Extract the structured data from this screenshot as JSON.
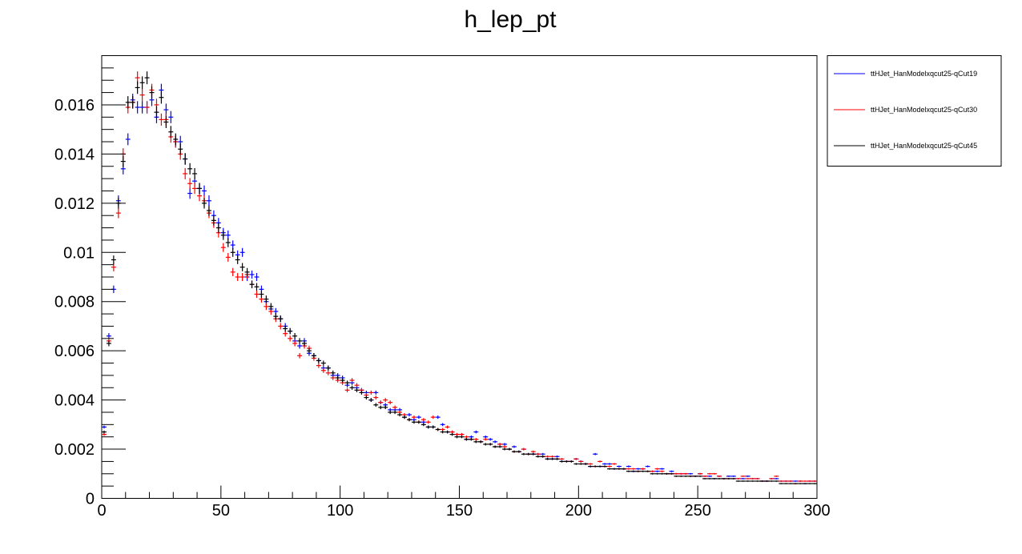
{
  "chart_data": {
    "type": "scatter",
    "title": "h_lep_pt",
    "xlabel": "",
    "ylabel": "",
    "xlim": [
      0,
      300
    ],
    "ylim": [
      0,
      0.018
    ],
    "x_ticks": [
      0,
      50,
      100,
      150,
      200,
      250,
      300
    ],
    "x_tick_labels": [
      "0",
      "50",
      "100",
      "150",
      "200",
      "250",
      "300"
    ],
    "y_ticks": [
      0,
      0.002,
      0.004,
      0.006,
      0.008,
      0.01,
      0.012,
      0.014,
      0.016
    ],
    "y_tick_labels": [
      "0",
      "0.002",
      "0.004",
      "0.006",
      "0.008",
      "0.01",
      "0.012",
      "0.014",
      "0.016"
    ],
    "grid": false,
    "legend_position": "outside-top-right",
    "bin_width": 2,
    "series": [
      {
        "name": "ttHJet_HanModelxqcut25-qCut19",
        "color": "#0000ff",
        "x": [
          1,
          3,
          5,
          7,
          9,
          11,
          13,
          15,
          17,
          19,
          21,
          23,
          25,
          27,
          29,
          31,
          33,
          35,
          37,
          39,
          41,
          43,
          45,
          47,
          49,
          51,
          53,
          55,
          57,
          59,
          61,
          63,
          65,
          67,
          69,
          71,
          73,
          75,
          77,
          79,
          81,
          83,
          85,
          87,
          89,
          91,
          93,
          95,
          97,
          99,
          101,
          103,
          105,
          107,
          109,
          111,
          113,
          115,
          117,
          119,
          121,
          123,
          125,
          127,
          129,
          131,
          133,
          135,
          137,
          139,
          141,
          143,
          145,
          147,
          149,
          151,
          153,
          155,
          157,
          159,
          161,
          163,
          165,
          167,
          169,
          171,
          173,
          175,
          177,
          179,
          181,
          183,
          185,
          187,
          189,
          191,
          193,
          195,
          197,
          199,
          201,
          203,
          205,
          207,
          209,
          211,
          213,
          215,
          217,
          219,
          221,
          223,
          225,
          227,
          229,
          231,
          233,
          235,
          237,
          239,
          241,
          243,
          245,
          247,
          249,
          251,
          253,
          255,
          257,
          259,
          261,
          263,
          265,
          267,
          269,
          271,
          273,
          275,
          277,
          279,
          281,
          283,
          285,
          287,
          289,
          291,
          293,
          295,
          297,
          299
        ],
        "y": [
          0.0029,
          0.0066,
          0.0085,
          0.0121,
          0.0134,
          0.0146,
          0.0162,
          0.0159,
          0.0159,
          0.0159,
          0.0162,
          0.0155,
          0.0166,
          0.0158,
          0.0155,
          0.0145,
          0.0145,
          0.0138,
          0.0124,
          0.0129,
          0.0126,
          0.0125,
          0.0121,
          0.0115,
          0.0112,
          0.0108,
          0.0107,
          0.0103,
          0.0099,
          0.01,
          0.009,
          0.0091,
          0.009,
          0.0085,
          0.008,
          0.0077,
          0.0076,
          0.0073,
          0.007,
          0.0068,
          0.0064,
          0.0062,
          0.0064,
          0.0059,
          0.0058,
          0.0056,
          0.0053,
          0.0053,
          0.005,
          0.005,
          0.0049,
          0.0046,
          0.0047,
          0.0045,
          0.0044,
          0.0043,
          0.004,
          0.0043,
          0.0039,
          0.0038,
          0.0036,
          0.0036,
          0.0036,
          0.0033,
          0.0034,
          0.0032,
          0.0033,
          0.0031,
          0.0029,
          0.0029,
          0.0033,
          0.003,
          0.0027,
          0.0027,
          0.0026,
          0.0026,
          0.0024,
          0.0025,
          0.0027,
          0.0023,
          0.0025,
          0.0024,
          0.0023,
          0.0022,
          0.0022,
          0.002,
          0.0021,
          0.0019,
          0.002,
          0.0018,
          0.0018,
          0.0018,
          0.0018,
          0.0016,
          0.0016,
          0.0017,
          0.0015,
          0.0015,
          0.0015,
          0.0016,
          0.0015,
          0.0014,
          0.0013,
          0.0018,
          0.0013,
          0.0014,
          0.0014,
          0.0012,
          0.0013,
          0.0012,
          0.0013,
          0.0011,
          0.0012,
          0.0012,
          0.0013,
          0.0011,
          0.0011,
          0.0012,
          0.001,
          0.0011,
          0.001,
          0.001,
          0.001,
          0.001,
          0.0009,
          0.001,
          0.0009,
          0.0009,
          0.0008,
          0.0009,
          0.0008,
          0.0009,
          0.0009,
          0.0008,
          0.0008,
          0.0009,
          0.0008,
          0.0008,
          0.0007,
          0.0007,
          0.0008,
          0.0008,
          0.0007,
          0.0007,
          0.0007,
          0.0007,
          0.0007,
          0.0006,
          0.0007,
          0.0007
        ]
      },
      {
        "name": "ttHJet_HanModelxqcut25-qCut30",
        "color": "#ff0000",
        "x": [
          1,
          3,
          5,
          7,
          9,
          11,
          13,
          15,
          17,
          19,
          21,
          23,
          25,
          27,
          29,
          31,
          33,
          35,
          37,
          39,
          41,
          43,
          45,
          47,
          49,
          51,
          53,
          55,
          57,
          59,
          61,
          63,
          65,
          67,
          69,
          71,
          73,
          75,
          77,
          79,
          81,
          83,
          85,
          87,
          89,
          91,
          93,
          95,
          97,
          99,
          101,
          103,
          105,
          107,
          109,
          111,
          113,
          115,
          117,
          119,
          121,
          123,
          125,
          127,
          129,
          131,
          133,
          135,
          137,
          139,
          141,
          143,
          145,
          147,
          149,
          151,
          153,
          155,
          157,
          159,
          161,
          163,
          165,
          167,
          169,
          171,
          173,
          175,
          177,
          179,
          181,
          183,
          185,
          187,
          189,
          191,
          193,
          195,
          197,
          199,
          201,
          203,
          205,
          207,
          209,
          211,
          213,
          215,
          217,
          219,
          221,
          223,
          225,
          227,
          229,
          231,
          233,
          235,
          237,
          239,
          241,
          243,
          245,
          247,
          249,
          251,
          253,
          255,
          257,
          259,
          261,
          263,
          265,
          267,
          269,
          271,
          273,
          275,
          277,
          279,
          281,
          283,
          285,
          287,
          289,
          291,
          293,
          295,
          297,
          299
        ],
        "y": [
          0.0026,
          0.0064,
          0.0094,
          0.0116,
          0.014,
          0.0159,
          0.0161,
          0.0171,
          0.0164,
          0.0159,
          0.0166,
          0.016,
          0.0154,
          0.0154,
          0.0147,
          0.0145,
          0.014,
          0.0132,
          0.0128,
          0.0126,
          0.0123,
          0.0121,
          0.0116,
          0.0112,
          0.0108,
          0.0102,
          0.0098,
          0.0092,
          0.009,
          0.009,
          0.0091,
          0.0087,
          0.0083,
          0.0081,
          0.0078,
          0.0076,
          0.0073,
          0.007,
          0.0067,
          0.0065,
          0.0063,
          0.0058,
          0.0062,
          0.0061,
          0.0057,
          0.0054,
          0.0052,
          0.0051,
          0.0049,
          0.0048,
          0.0047,
          0.0044,
          0.0048,
          0.0046,
          0.0044,
          0.0042,
          0.0043,
          0.0041,
          0.0039,
          0.004,
          0.0039,
          0.0037,
          0.0035,
          0.0034,
          0.0032,
          0.0033,
          0.0031,
          0.0032,
          0.0031,
          0.0033,
          0.0028,
          0.0028,
          0.0029,
          0.0027,
          0.0026,
          0.0026,
          0.0025,
          0.0024,
          0.0024,
          0.0023,
          0.0024,
          0.0022,
          0.0021,
          0.0022,
          0.0021,
          0.002,
          0.0019,
          0.0019,
          0.002,
          0.0018,
          0.0019,
          0.0018,
          0.0017,
          0.0017,
          0.0017,
          0.0016,
          0.0016,
          0.0015,
          0.0015,
          0.0016,
          0.0015,
          0.0014,
          0.0014,
          0.0013,
          0.0015,
          0.0013,
          0.0013,
          0.0014,
          0.0012,
          0.0012,
          0.0012,
          0.0012,
          0.0011,
          0.0012,
          0.0011,
          0.0011,
          0.0012,
          0.0011,
          0.001,
          0.001,
          0.001,
          0.001,
          0.001,
          0.0009,
          0.0009,
          0.001,
          0.0009,
          0.001,
          0.001,
          0.0009,
          0.0008,
          0.0008,
          0.0008,
          0.0008,
          0.0009,
          0.0008,
          0.0008,
          0.0008,
          0.0007,
          0.0007,
          0.0008,
          0.0009,
          0.0007,
          0.0007,
          0.0007,
          0.0006,
          0.0007,
          0.0007,
          0.0007,
          0.0007
        ]
      },
      {
        "name": "ttHJet_HanModelxqcut25-qCut45",
        "color": "#000000",
        "x": [
          1,
          3,
          5,
          7,
          9,
          11,
          13,
          15,
          17,
          19,
          21,
          23,
          25,
          27,
          29,
          31,
          33,
          35,
          37,
          39,
          41,
          43,
          45,
          47,
          49,
          51,
          53,
          55,
          57,
          59,
          61,
          63,
          65,
          67,
          69,
          71,
          73,
          75,
          77,
          79,
          81,
          83,
          85,
          87,
          89,
          91,
          93,
          95,
          97,
          99,
          101,
          103,
          105,
          107,
          109,
          111,
          113,
          115,
          117,
          119,
          121,
          123,
          125,
          127,
          129,
          131,
          133,
          135,
          137,
          139,
          141,
          143,
          145,
          147,
          149,
          151,
          153,
          155,
          157,
          159,
          161,
          163,
          165,
          167,
          169,
          171,
          173,
          175,
          177,
          179,
          181,
          183,
          185,
          187,
          189,
          191,
          193,
          195,
          197,
          199,
          201,
          203,
          205,
          207,
          209,
          211,
          213,
          215,
          217,
          219,
          221,
          223,
          225,
          227,
          229,
          231,
          233,
          235,
          237,
          239,
          241,
          243,
          245,
          247,
          249,
          251,
          253,
          255,
          257,
          259,
          261,
          263,
          265,
          267,
          269,
          271,
          273,
          275,
          277,
          279,
          281,
          283,
          285,
          287,
          289,
          291,
          293,
          295,
          297,
          299
        ],
        "y": [
          0.0027,
          0.0063,
          0.0097,
          0.012,
          0.0137,
          0.0161,
          0.0161,
          0.0167,
          0.0169,
          0.0171,
          0.0165,
          0.0157,
          0.0163,
          0.0153,
          0.0149,
          0.0146,
          0.0142,
          0.0138,
          0.0134,
          0.0132,
          0.0126,
          0.012,
          0.0117,
          0.0113,
          0.011,
          0.0107,
          0.0104,
          0.01,
          0.0097,
          0.0094,
          0.0092,
          0.0087,
          0.0086,
          0.0083,
          0.0081,
          0.0078,
          0.0074,
          0.0073,
          0.0069,
          0.0068,
          0.0066,
          0.0064,
          0.0063,
          0.006,
          0.0058,
          0.0056,
          0.0055,
          0.0053,
          0.0051,
          0.0049,
          0.0048,
          0.0047,
          0.0045,
          0.0044,
          0.0043,
          0.0041,
          0.004,
          0.0038,
          0.0037,
          0.0037,
          0.0035,
          0.0035,
          0.0034,
          0.0033,
          0.0032,
          0.0031,
          0.0031,
          0.003,
          0.0029,
          0.0029,
          0.0028,
          0.0027,
          0.0027,
          0.0026,
          0.0025,
          0.0025,
          0.0024,
          0.0024,
          0.0023,
          0.0023,
          0.0022,
          0.0022,
          0.0021,
          0.0021,
          0.002,
          0.002,
          0.0019,
          0.0019,
          0.0018,
          0.0018,
          0.0018,
          0.0017,
          0.0017,
          0.0016,
          0.0016,
          0.0016,
          0.0015,
          0.0015,
          0.0015,
          0.0014,
          0.0014,
          0.0014,
          0.0013,
          0.0013,
          0.0013,
          0.0013,
          0.0012,
          0.0012,
          0.0012,
          0.0012,
          0.0011,
          0.0011,
          0.0011,
          0.0011,
          0.0011,
          0.001,
          0.001,
          0.001,
          0.001,
          0.001,
          0.0009,
          0.0009,
          0.0009,
          0.0009,
          0.0009,
          0.0009,
          0.0008,
          0.0008,
          0.0008,
          0.0008,
          0.0008,
          0.0008,
          0.0008,
          0.0007,
          0.0007,
          0.0007,
          0.0007,
          0.0007,
          0.0007,
          0.0007,
          0.0007,
          0.0007,
          0.0006,
          0.0006,
          0.0006,
          0.0006,
          0.0006,
          0.0006,
          0.0006,
          0.0006
        ]
      }
    ]
  }
}
